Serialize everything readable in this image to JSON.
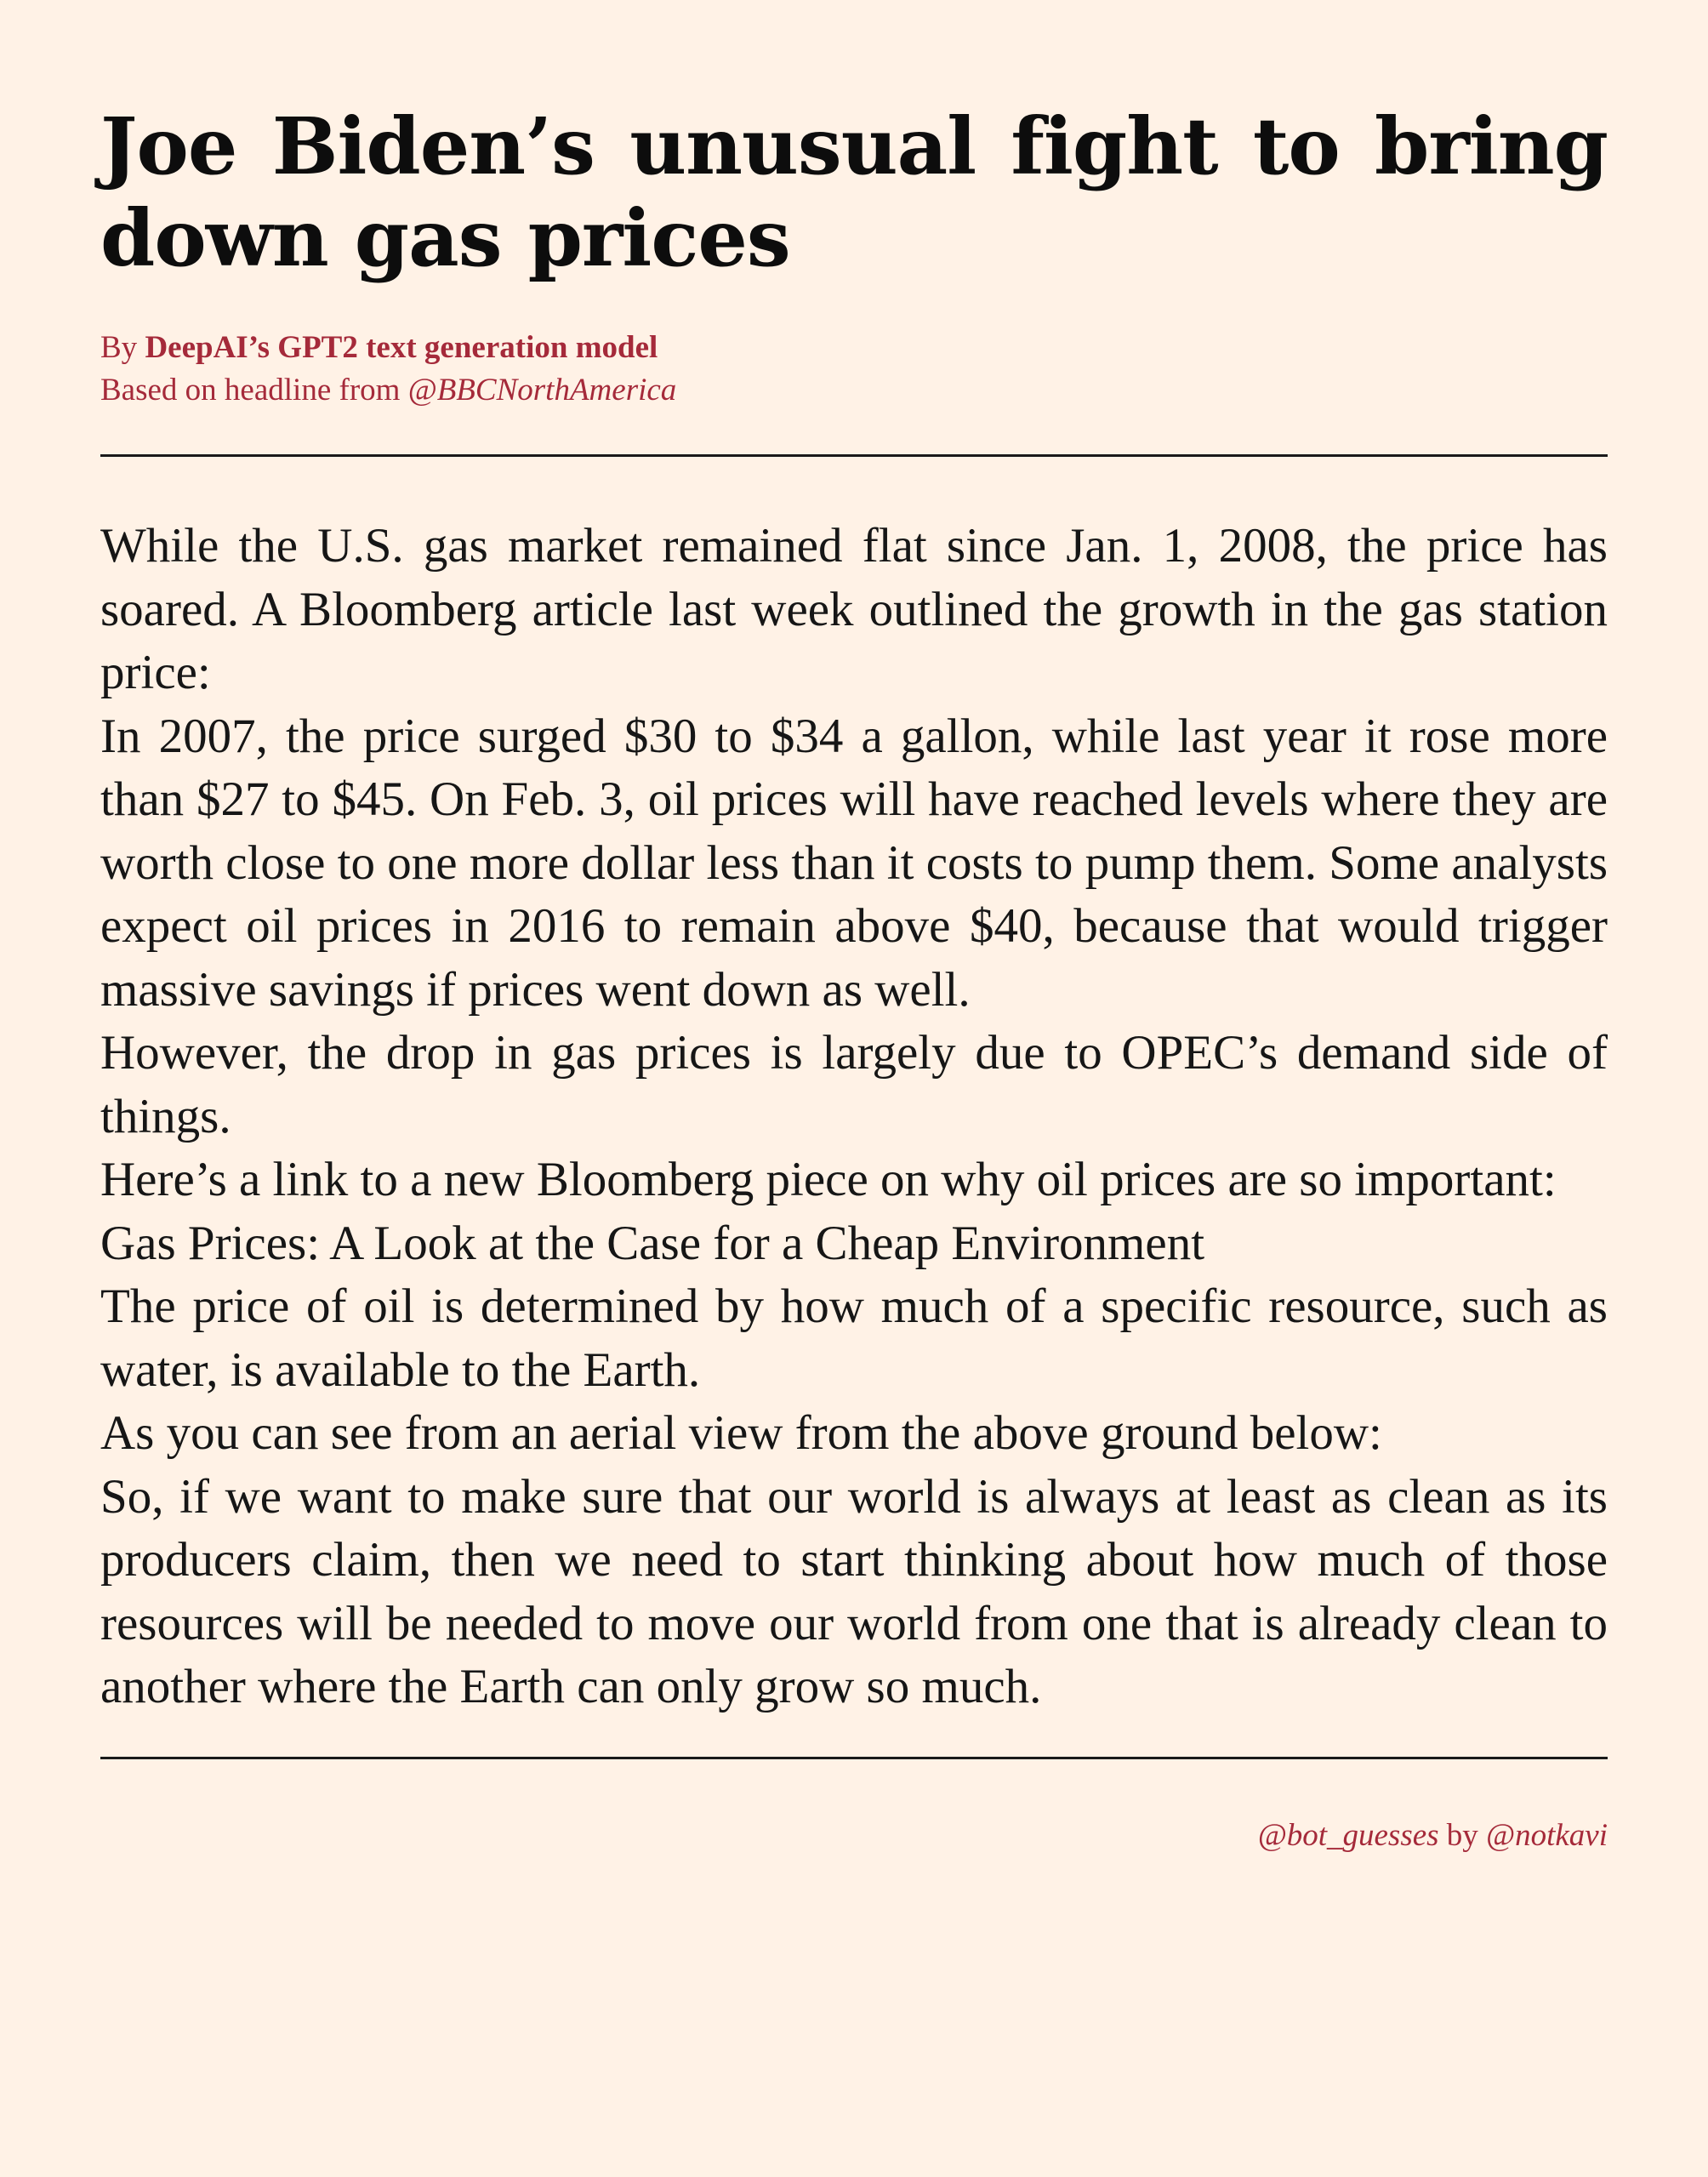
{
  "headline": "Joe Biden’s unusual fight to bring down gas prices",
  "byline": {
    "prefix": "By ",
    "author": "DeepAI’s GPT2 text generation model",
    "source_prefix": "Based on headline from ",
    "source_handle": "@BBCNorthAmerica"
  },
  "article": {
    "paragraphs": [
      "While the U.S. gas market remained flat since Jan. 1, 2008, the price has soared. A Bloomberg article last week outlined the growth in the gas station price:",
      "In 2007, the price surged $30 to $34 a gallon, while last year it rose more than $27 to $45. On Feb. 3, oil prices will have reached levels where they are worth close to one more dollar less than it costs to pump them. Some analysts expect oil prices in 2016 to remain above $40, because that would trigger massive savings if prices went down as well.",
      "However, the drop in gas prices is largely due to OPEC’s demand side of things.",
      "Here’s a link to a new Bloomberg piece on why oil prices are so important:",
      "Gas Prices: A Look at the Case for a Cheap Environment",
      "The price of oil is determined by how much of a specific resource, such as water, is available to the Earth.",
      "As you can see from an aerial view from the above ground below:",
      "So, if we want to make sure that our world is always at least as clean as its producers claim, then we need to start thinking about how much of those resources will be needed to move our world from one that is already clean to another where the Earth can only grow so much."
    ]
  },
  "footer": {
    "bot_handle": "@bot_guesses",
    "joiner": " by ",
    "creator_handle": "@notkavi"
  },
  "colors": {
    "background": "#fff2e6",
    "accent": "#a52a3a",
    "text": "#161616"
  }
}
